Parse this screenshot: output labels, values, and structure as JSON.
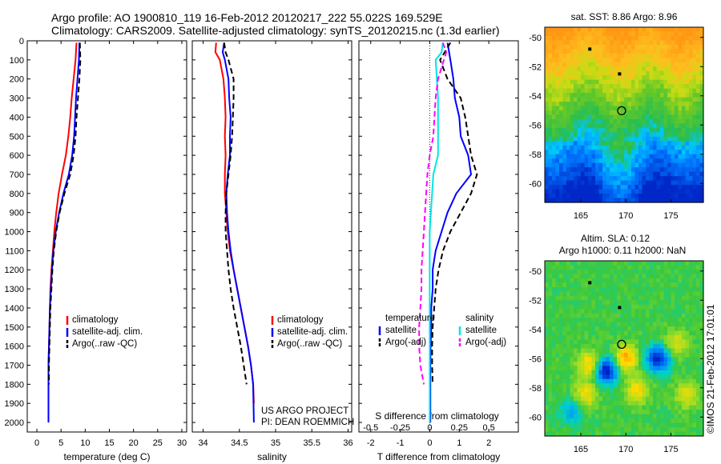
{
  "header": {
    "line1": "Argo profile: AO 1900810_119 16-Feb-2012 20120217_222 55.022S 169.529E",
    "line2": "Climatology: CARS2009. Satellite-adjusted climatology: synTS_20120215.nc (1.3d earlier)"
  },
  "side_text": "©IMOS 21-Feb-2012 17:01:01",
  "depth_ticks": [
    "0",
    "100",
    "200",
    "300",
    "400",
    "500",
    "600",
    "700",
    "800",
    "900",
    "1000",
    "1100",
    "1200",
    "1300",
    "1400",
    "1500",
    "1600",
    "1700",
    "1800",
    "1900",
    "2000"
  ],
  "colors": {
    "climatology": "#ff0000",
    "satellite": "#0000ff",
    "argo": "#000000",
    "sal_satellite": "#00e6e6",
    "sal_argo": "#ff00ff"
  },
  "chart_data": [
    {
      "type": "line",
      "xlabel": "temperature (deg C)",
      "xticks": [
        "0",
        "5",
        "10",
        "15",
        "20",
        "25",
        "30"
      ],
      "xlim": [
        -2,
        31
      ],
      "ylim": [
        2050,
        0
      ],
      "legend_placement": "lower-right",
      "legend": [
        "climatology",
        "satellite-adj. clim.",
        "Argo(..raw -QC)"
      ],
      "series": [
        {
          "name": "climatology",
          "color": "#ff0000",
          "dash": "solid",
          "x": [
            8.2,
            8.0,
            7.6,
            7.2,
            6.9,
            6.5,
            6.0,
            5.2,
            4.5,
            4.0,
            3.6,
            3.3,
            3.0,
            2.8,
            2.7,
            2.6,
            2.5,
            2.4,
            2.4,
            2.4,
            2.4
          ],
          "y": [
            10,
            100,
            200,
            300,
            400,
            500,
            600,
            700,
            800,
            900,
            1000,
            1100,
            1200,
            1300,
            1400,
            1500,
            1600,
            1700,
            1800,
            1900,
            2000
          ]
        },
        {
          "name": "satellite-adj. clim.",
          "color": "#0000ff",
          "dash": "solid",
          "x": [
            8.8,
            8.7,
            8.4,
            8.1,
            7.9,
            7.7,
            7.3,
            6.6,
            5.5,
            4.6,
            3.9,
            3.4,
            3.1,
            2.9,
            2.7,
            2.6,
            2.5,
            2.4,
            2.4,
            2.4,
            2.4
          ],
          "y": [
            10,
            100,
            200,
            300,
            400,
            500,
            600,
            700,
            800,
            900,
            1000,
            1100,
            1200,
            1300,
            1400,
            1500,
            1600,
            1700,
            1800,
            1900,
            2000
          ]
        },
        {
          "name": "Argo(..raw -QC)",
          "color": "#000000",
          "dash": "dashed",
          "x": [
            8.9,
            9.0,
            8.8,
            8.5,
            8.2,
            8.0,
            7.6,
            6.9,
            5.7,
            4.7,
            4.0,
            3.5,
            3.2,
            3.0,
            2.8,
            2.7,
            2.6,
            2.5,
            2.5
          ],
          "y": [
            10,
            100,
            200,
            300,
            400,
            500,
            600,
            700,
            800,
            900,
            1000,
            1100,
            1200,
            1300,
            1400,
            1500,
            1600,
            1700,
            1800
          ]
        }
      ]
    },
    {
      "type": "line",
      "xlabel": "salinity",
      "xticks": [
        "34",
        "34.5",
        "35",
        "35.5",
        "36"
      ],
      "xlim": [
        33.85,
        36.05
      ],
      "ylim": [
        2050,
        0
      ],
      "legend_placement": "lower-right",
      "legend": [
        "climatology",
        "satellite-adj. clim.",
        "Argo(..raw -QC)"
      ],
      "annotation": [
        "US ARGO PROJECT",
        "PI: DEAN ROEMMICH"
      ],
      "series": [
        {
          "name": "climatology",
          "color": "#ff0000",
          "dash": "solid",
          "x": [
            34.18,
            34.17,
            34.23,
            34.28,
            34.3,
            34.31,
            34.3,
            34.31,
            34.3,
            34.3,
            34.32,
            34.34,
            34.37,
            34.42,
            34.47,
            34.52,
            34.57,
            34.62,
            34.66,
            34.69,
            34.7
          ],
          "y": [
            10,
            60,
            100,
            200,
            300,
            400,
            500,
            600,
            700,
            800,
            900,
            1000,
            1100,
            1200,
            1300,
            1400,
            1500,
            1600,
            1700,
            1800,
            1900
          ]
        },
        {
          "name": "satellite-adj. clim.",
          "color": "#0000ff",
          "dash": "solid",
          "x": [
            34.29,
            34.27,
            34.3,
            34.35,
            34.36,
            34.38,
            34.37,
            34.37,
            34.34,
            34.32,
            34.33,
            34.35,
            34.38,
            34.42,
            34.47,
            34.52,
            34.57,
            34.62,
            34.66,
            34.69,
            34.7
          ],
          "y": [
            10,
            60,
            100,
            200,
            300,
            400,
            500,
            600,
            700,
            800,
            900,
            1000,
            1100,
            1200,
            1300,
            1400,
            1500,
            1600,
            1700,
            1800,
            2000
          ]
        },
        {
          "name": "Argo(..raw -QC)",
          "color": "#000000",
          "dash": "dashed",
          "x": [
            34.29,
            34.31,
            34.35,
            34.42,
            34.42,
            34.41,
            34.4,
            34.38,
            34.35,
            34.32,
            34.31,
            34.31,
            34.33,
            34.35,
            34.38,
            34.42,
            34.47,
            34.52,
            34.56,
            34.6
          ],
          "y": [
            10,
            60,
            100,
            200,
            300,
            400,
            500,
            600,
            700,
            800,
            900,
            1000,
            1100,
            1200,
            1300,
            1400,
            1500,
            1600,
            1700,
            1800
          ]
        }
      ]
    },
    {
      "type": "line",
      "xlabel": "T difference from climatology",
      "xticks": [
        "-2",
        "-1",
        "0",
        "1",
        "2"
      ],
      "xlim": [
        -2.4,
        3.0
      ],
      "ylim": [
        2050,
        0
      ],
      "secondary_xlabel": "S difference from climatology",
      "secondary_xticks": [
        "-0.5",
        "-0.25",
        "0",
        "0.25",
        "0.5"
      ],
      "secondary_xlim": [
        -0.6,
        0.75
      ],
      "zero_line": "dotted",
      "legend_placement": "lower",
      "legend": {
        "temperature_title": "temperature",
        "temperature_items": [
          "satellite",
          "Argo(-adj)"
        ],
        "salinity_title": "salinity",
        "salinity_items": [
          "satellite",
          "Argo(-adj)"
        ]
      },
      "series": [
        {
          "name": "satellite",
          "group": "temperature",
          "color": "#0000ff",
          "dash": "solid",
          "x": [
            0.6,
            0.7,
            0.8,
            0.85,
            1.0,
            1.05,
            1.3,
            1.4,
            0.9,
            0.6,
            0.4,
            0.2,
            0.1,
            0.1,
            0.05,
            0.05,
            0.03,
            0.02,
            0.02,
            0.02,
            0.02
          ],
          "y": [
            10,
            100,
            200,
            300,
            400,
            500,
            600,
            700,
            800,
            900,
            1000,
            1100,
            1200,
            1300,
            1400,
            1500,
            1600,
            1700,
            1800,
            1900,
            2000
          ]
        },
        {
          "name": "Argo(-adj)",
          "group": "temperature",
          "color": "#000000",
          "dash": "dashed",
          "x": [
            0.7,
            0.35,
            0.6,
            1.05,
            1.2,
            1.3,
            1.4,
            1.6,
            1.4,
            1.05,
            0.7,
            0.45,
            0.3,
            0.2,
            0.15,
            0.1,
            0.08,
            0.08,
            0.1
          ],
          "y": [
            10,
            100,
            200,
            300,
            400,
            500,
            600,
            700,
            800,
            900,
            1000,
            1100,
            1200,
            1300,
            1400,
            1500,
            1600,
            1700,
            1800
          ]
        },
        {
          "name": "satellite",
          "group": "salinity",
          "color": "#00e6e6",
          "dash": "solid",
          "x": [
            0.11,
            0.1,
            0.05,
            0.06,
            0.07,
            0.07,
            0.07,
            0.07,
            0.03,
            0.02,
            0.01,
            0.0,
            0.0,
            0.0,
            0.0,
            0.0,
            0.0,
            0.0,
            0.0,
            0.0,
            0.0
          ],
          "y": [
            10,
            60,
            100,
            200,
            300,
            400,
            500,
            600,
            700,
            800,
            900,
            1000,
            1100,
            1200,
            1300,
            1400,
            1500,
            1600,
            1700,
            1800,
            2000
          ]
        },
        {
          "name": "Argo(-adj)",
          "group": "salinity",
          "color": "#ff00ff",
          "dash": "dashed",
          "x": [
            0.11,
            0.14,
            0.12,
            0.07,
            0.05,
            0.04,
            0.03,
            0.0,
            -0.02,
            -0.03,
            -0.04,
            -0.05,
            -0.06,
            -0.07,
            -0.07,
            -0.08,
            -0.09,
            -0.09,
            -0.08,
            -0.05
          ],
          "y": [
            10,
            60,
            100,
            200,
            300,
            400,
            500,
            600,
            700,
            800,
            900,
            1000,
            1100,
            1200,
            1300,
            1400,
            1500,
            1600,
            1700,
            1800
          ]
        }
      ]
    },
    {
      "type": "heatmap",
      "title": "sat. SST: 8.86 Argo: 8.96",
      "xticks": [
        "165",
        "170",
        "175"
      ],
      "yticks": [
        "-50",
        "-52",
        "-54",
        "-56",
        "-58",
        "-60"
      ],
      "xlim": [
        161.0,
        178.6
      ],
      "ylim": [
        -61.3,
        -49.3
      ],
      "argo_marker": {
        "lon": 169.53,
        "lat": -55.02
      },
      "small_markers": [
        {
          "lon": 166.0,
          "lat": -50.8
        },
        {
          "lon": 169.3,
          "lat": -52.5
        }
      ]
    },
    {
      "type": "heatmap",
      "title": "Altim. SLA: 0.12",
      "subtitle": "Argo h1000: 0.11 h2000: NaN",
      "xticks": [
        "165",
        "170",
        "175"
      ],
      "yticks": [
        "-50",
        "-52",
        "-54",
        "-56",
        "-58",
        "-60"
      ],
      "xlim": [
        161.0,
        178.6
      ],
      "ylim": [
        -61.3,
        -49.3
      ],
      "argo_marker": {
        "lon": 169.53,
        "lat": -55.02
      },
      "small_markers": [
        {
          "lon": 166.0,
          "lat": -50.8
        },
        {
          "lon": 169.3,
          "lat": -52.5
        }
      ]
    }
  ]
}
